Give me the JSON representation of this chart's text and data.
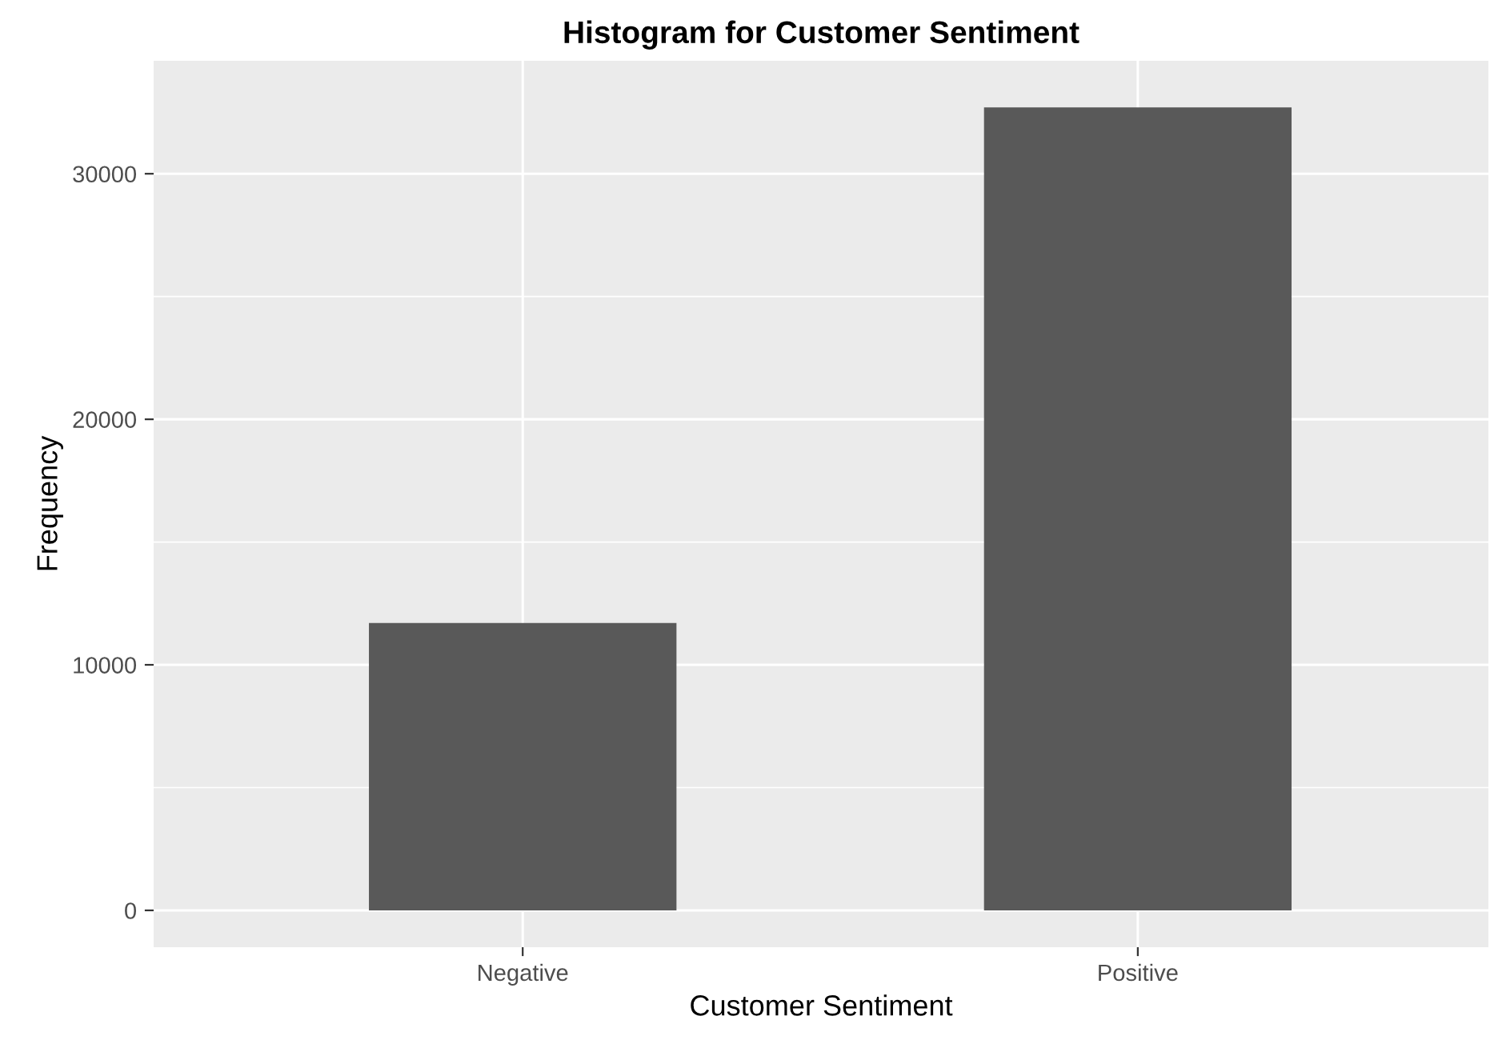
{
  "chart_data": {
    "type": "bar",
    "title": "Histogram for Customer Sentiment",
    "xlabel": "Customer Sentiment",
    "ylabel": "Frequency",
    "categories": [
      "Negative",
      "Positive"
    ],
    "values": [
      11700,
      32700
    ],
    "color": "#595959",
    "ylim": [
      -1500,
      34600
    ],
    "yticks": [
      0,
      {
        "value": 5000,
        "label": null
      },
      10000,
      {
        "value": 15000,
        "label": null
      },
      20000,
      {
        "value": 25000,
        "label": null
      },
      30000
    ],
    "grid": true
  }
}
